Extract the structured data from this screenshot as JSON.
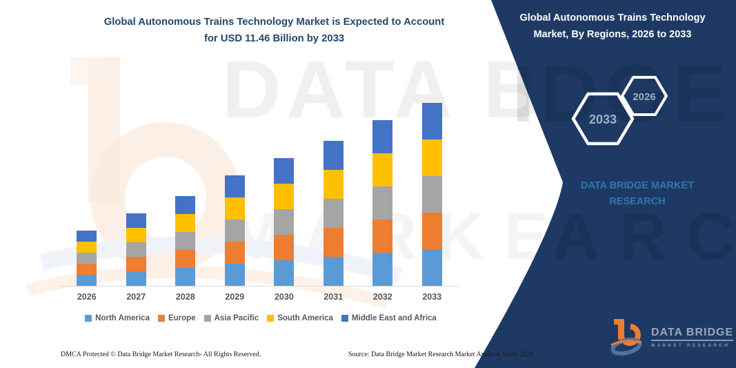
{
  "header": {
    "title_line1": "Global Autonomous Trains Technology Market is Expected to Account",
    "title_line2": "for USD 11.46 Billion by 2033"
  },
  "panel": {
    "bg_color": "#1e3a64",
    "title_line1": "Global Autonomous Trains Technology",
    "title_line2": "Market, By Regions, 2026 to 2033",
    "hexagons": [
      {
        "label": "2033"
      },
      {
        "label": "2026"
      }
    ],
    "brand_text": "DATA BRIDGE MARKET RESEARCH",
    "brand_color": "#2f76b5"
  },
  "chart_data": {
    "type": "bar",
    "stacked": true,
    "title": "Global Autonomous Trains Technology Market is Expected to Account for USD 11.46 Billion by 2033",
    "unit": "USD Billion",
    "categories": [
      "2026",
      "2027",
      "2028",
      "2029",
      "2030",
      "2031",
      "2032",
      "2033"
    ],
    "series": [
      {
        "name": "North America",
        "color": "#5B9BD5",
        "values": [
          0.69,
          0.92,
          1.14,
          1.37,
          1.61,
          1.82,
          2.06,
          2.29
        ]
      },
      {
        "name": "Europe",
        "color": "#ED7D31",
        "values": [
          0.69,
          0.92,
          1.14,
          1.37,
          1.61,
          1.82,
          2.06,
          2.29
        ]
      },
      {
        "name": "Asia Pacific",
        "color": "#A5A5A5",
        "values": [
          0.69,
          0.92,
          1.14,
          1.37,
          1.61,
          1.82,
          2.06,
          2.29
        ]
      },
      {
        "name": "South America",
        "color": "#FFC000",
        "values": [
          0.69,
          0.92,
          1.14,
          1.37,
          1.61,
          1.82,
          2.06,
          2.29
        ]
      },
      {
        "name": "Middle East and Africa",
        "color": "#4472C4",
        "values": [
          0.69,
          0.92,
          1.14,
          1.37,
          1.61,
          1.82,
          2.06,
          2.29
        ]
      }
    ],
    "totals": [
      3.46,
      4.6,
      5.72,
      6.84,
      8.04,
      9.12,
      10.29,
      11.46
    ],
    "ylim": [
      0,
      12
    ],
    "gridlines": false,
    "legend_position": "bottom"
  },
  "footer": {
    "left": "DMCA Protected © Data Bridge Market Research-  All Rights Reserved.",
    "right": "Source: Data Bridge Market Research  Market Analysis Study 2026"
  },
  "logo": {
    "line1": "DATA BRIDGE",
    "line2": "MARKET RESEARCH"
  },
  "watermark": {
    "row1": "DATA BRIDGE",
    "row2": "MARKET RESEARCH",
    "panel_row1_fragment": "IDGE",
    "panel_row2_fragment": "ARCH"
  }
}
